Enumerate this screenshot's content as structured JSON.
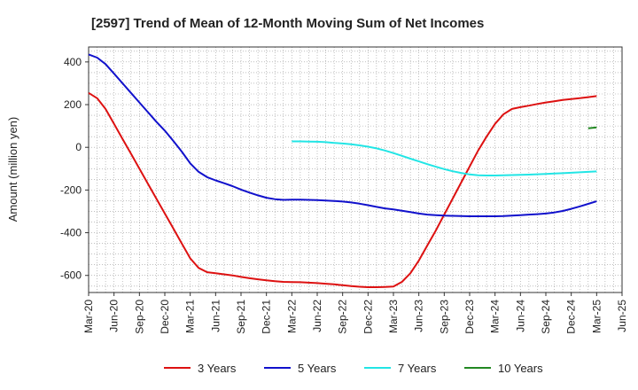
{
  "chart_data": {
    "type": "line",
    "title": "[2597]  Trend of Mean of 12-Month Moving Sum of Net Incomes",
    "ylabel": "Amount (million yen)",
    "xlabel": "",
    "ylim": [
      -680,
      470
    ],
    "yticks": [
      400,
      200,
      0,
      -200,
      -400,
      -600
    ],
    "xticks": [
      "Mar-20",
      "Jun-20",
      "Sep-20",
      "Dec-20",
      "Mar-21",
      "Jun-21",
      "Sep-21",
      "Dec-21",
      "Mar-22",
      "Jun-22",
      "Sep-22",
      "Dec-22",
      "Mar-23",
      "Jun-23",
      "Sep-23",
      "Dec-23",
      "Mar-24",
      "Jun-24",
      "Sep-24",
      "Dec-24",
      "Mar-25",
      "Jun-25"
    ],
    "grid": true,
    "legend_position": "bottom",
    "series": [
      {
        "name": "3 Years",
        "color": "#dd1111",
        "x": [
          "Mar-20",
          "Apr-20",
          "May-20",
          "Jun-20",
          "Jul-20",
          "Aug-20",
          "Sep-20",
          "Oct-20",
          "Nov-20",
          "Dec-20",
          "Jan-21",
          "Feb-21",
          "Mar-21",
          "Apr-21",
          "May-21",
          "Jun-21",
          "Jul-21",
          "Aug-21",
          "Sep-21",
          "Oct-21",
          "Nov-21",
          "Dec-21",
          "Jan-22",
          "Feb-22",
          "Mar-22",
          "Apr-22",
          "May-22",
          "Jun-22",
          "Jul-22",
          "Aug-22",
          "Sep-22",
          "Oct-22",
          "Nov-22",
          "Dec-22",
          "Jan-23",
          "Feb-23",
          "Mar-23",
          "Apr-23",
          "May-23",
          "Jun-23",
          "Jul-23",
          "Aug-23",
          "Sep-23",
          "Oct-23",
          "Nov-23",
          "Dec-23",
          "Jan-24",
          "Feb-24",
          "Mar-24",
          "Apr-24",
          "May-24",
          "Jun-24",
          "Jul-24",
          "Aug-24",
          "Sep-24",
          "Oct-24",
          "Nov-24",
          "Dec-24",
          "Jan-25",
          "Feb-25",
          "Mar-25"
        ],
        "values": [
          255,
          230,
          180,
          110,
          40,
          -30,
          -100,
          -170,
          -240,
          -310,
          -380,
          -450,
          -520,
          -565,
          -585,
          -590,
          -595,
          -600,
          -607,
          -613,
          -618,
          -623,
          -627,
          -630,
          -631,
          -632,
          -634,
          -636,
          -639,
          -642,
          -646,
          -650,
          -653,
          -655,
          -655,
          -654,
          -652,
          -630,
          -590,
          -530,
          -460,
          -390,
          -315,
          -240,
          -165,
          -90,
          -15,
          50,
          110,
          155,
          180,
          188,
          195,
          203,
          210,
          216,
          222,
          226,
          230,
          235,
          240
        ]
      },
      {
        "name": "5 Years",
        "color": "#1111cc",
        "x": [
          "Mar-20",
          "Apr-20",
          "May-20",
          "Jun-20",
          "Jul-20",
          "Aug-20",
          "Sep-20",
          "Oct-20",
          "Nov-20",
          "Dec-20",
          "Jan-21",
          "Feb-21",
          "Mar-21",
          "Apr-21",
          "May-21",
          "Jun-21",
          "Jul-21",
          "Aug-21",
          "Sep-21",
          "Oct-21",
          "Nov-21",
          "Dec-21",
          "Jan-22",
          "Feb-22",
          "Mar-22",
          "Apr-22",
          "May-22",
          "Jun-22",
          "Jul-22",
          "Aug-22",
          "Sep-22",
          "Oct-22",
          "Nov-22",
          "Dec-22",
          "Jan-23",
          "Feb-23",
          "Mar-23",
          "Apr-23",
          "May-23",
          "Jun-23",
          "Jul-23",
          "Aug-23",
          "Sep-23",
          "Oct-23",
          "Nov-23",
          "Dec-23",
          "Jan-24",
          "Feb-24",
          "Mar-24",
          "Apr-24",
          "May-24",
          "Jun-24",
          "Jul-24",
          "Aug-24",
          "Sep-24",
          "Oct-24",
          "Nov-24",
          "Dec-24",
          "Jan-25",
          "Feb-25",
          "Mar-25"
        ],
        "values": [
          435,
          420,
          390,
          345,
          300,
          255,
          210,
          165,
          120,
          78,
          30,
          -20,
          -75,
          -115,
          -140,
          -155,
          -168,
          -182,
          -198,
          -212,
          -225,
          -236,
          -243,
          -246,
          -245,
          -245,
          -246,
          -247,
          -249,
          -251,
          -254,
          -258,
          -264,
          -271,
          -279,
          -286,
          -291,
          -297,
          -303,
          -310,
          -315,
          -318,
          -320,
          -321,
          -322,
          -323,
          -323,
          -323,
          -323,
          -322,
          -320,
          -318,
          -315,
          -313,
          -310,
          -305,
          -298,
          -288,
          -277,
          -265,
          -253
        ]
      },
      {
        "name": "7 Years",
        "color": "#22e5e5",
        "x": [
          "Mar-22",
          "Apr-22",
          "May-22",
          "Jun-22",
          "Jul-22",
          "Aug-22",
          "Sep-22",
          "Oct-22",
          "Nov-22",
          "Dec-22",
          "Jan-23",
          "Feb-23",
          "Mar-23",
          "Apr-23",
          "May-23",
          "Jun-23",
          "Jul-23",
          "Aug-23",
          "Sep-23",
          "Oct-23",
          "Nov-23",
          "Dec-23",
          "Jan-24",
          "Feb-24",
          "Mar-24",
          "Apr-24",
          "May-24",
          "Jun-24",
          "Jul-24",
          "Aug-24",
          "Sep-24",
          "Oct-24",
          "Nov-24",
          "Dec-24",
          "Jan-25",
          "Feb-25",
          "Mar-25"
        ],
        "values": [
          28,
          28,
          27,
          26,
          24,
          21,
          18,
          14,
          9,
          3,
          -5,
          -15,
          -27,
          -40,
          -53,
          -66,
          -79,
          -91,
          -102,
          -112,
          -120,
          -127,
          -131,
          -132,
          -132,
          -131,
          -130,
          -129,
          -128,
          -126,
          -125,
          -123,
          -121,
          -119,
          -117,
          -115,
          -113
        ]
      },
      {
        "name": "10 Years",
        "color": "#228822",
        "x": [
          "Feb-25",
          "Mar-25"
        ],
        "values": [
          89,
          93
        ]
      }
    ]
  }
}
